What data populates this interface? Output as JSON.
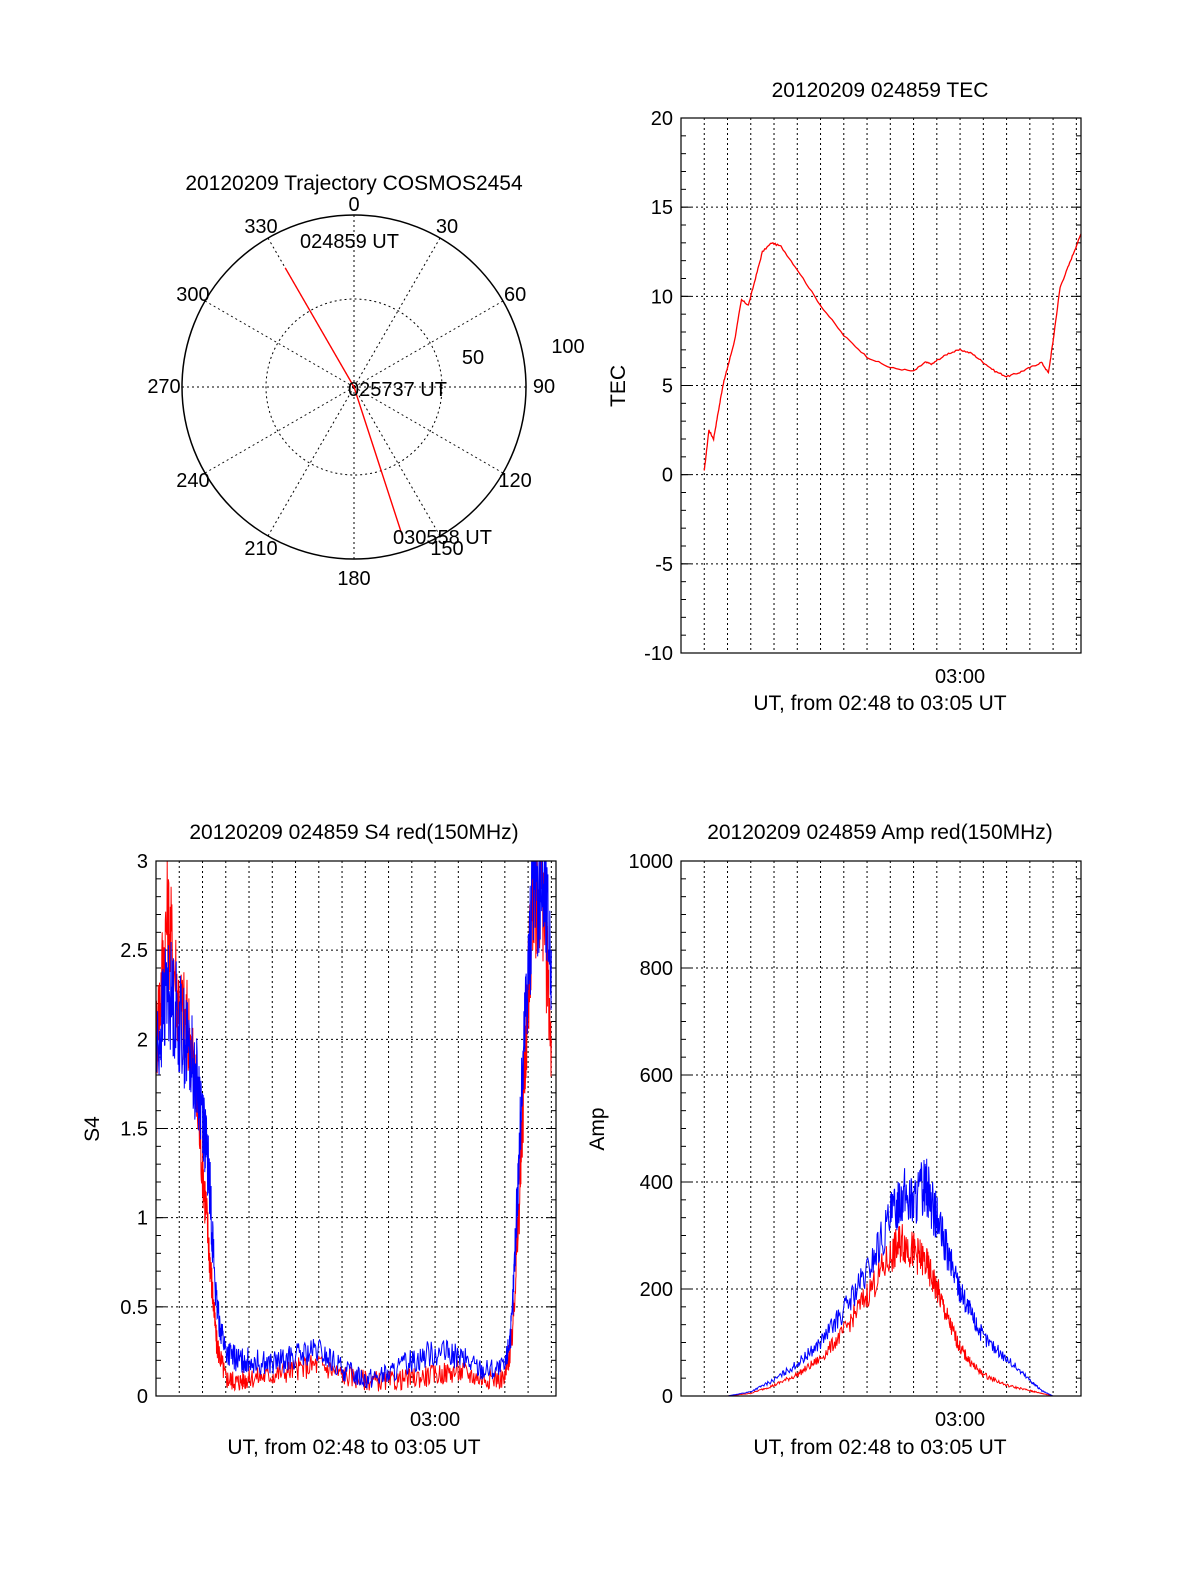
{
  "polar": {
    "title": "20120209 Trajectory COSMOS2454",
    "azimuth_labels": [
      "0",
      "30",
      "60",
      "90",
      "120",
      "150",
      "180",
      "210",
      "240",
      "270",
      "300",
      "330"
    ],
    "azimuths": [
      0,
      30,
      60,
      90,
      120,
      150,
      180,
      210,
      240,
      270,
      300,
      330
    ],
    "radial_labels": [
      "50",
      "100"
    ],
    "start_label": "024859 UT",
    "mid_label": "025737 UT",
    "end_label": "030558 UT",
    "track": [
      {
        "az": 330,
        "el_off": 80
      },
      {
        "az": 0,
        "el_off": 0
      },
      {
        "az": 162,
        "el_off": 92
      }
    ],
    "track_color": "#ff0000"
  },
  "chart_data": [
    {
      "type": "line",
      "title": "20120209 024859 TEC",
      "xlabel": "UT, from 02:48 to 03:05 UT",
      "ylabel": "TEC",
      "xlim": [
        0,
        17.2
      ],
      "ylim": [
        -10,
        20
      ],
      "yticks": [
        "-10",
        "-5",
        "0",
        "5",
        "10",
        "15",
        "20"
      ],
      "ytick_values": [
        -10,
        -5,
        0,
        5,
        10,
        15,
        20
      ],
      "xtick_label": "03:00",
      "xtick_value": 12.0,
      "series": [
        {
          "color": "#ff0000",
          "x": [
            1.0,
            1.2,
            1.4,
            1.6,
            1.8,
            2.0,
            2.3,
            2.6,
            2.9,
            3.2,
            3.5,
            3.9,
            4.3,
            5.0,
            6.0,
            7.0,
            8.0,
            9.0,
            10.0,
            10.5,
            10.8,
            11.0,
            11.5,
            12.0,
            12.5,
            13.0,
            13.5,
            14.0,
            14.5,
            15.0,
            15.5,
            15.8,
            16.0,
            16.3,
            16.6,
            16.9,
            17.2
          ],
          "y": [
            0.2,
            2.5,
            2.0,
            3.5,
            5.0,
            6.0,
            7.5,
            9.8,
            9.5,
            11.0,
            12.5,
            13.0,
            12.8,
            11.5,
            9.5,
            7.8,
            6.6,
            6.0,
            5.8,
            6.3,
            6.2,
            6.4,
            6.8,
            7.0,
            6.8,
            6.3,
            5.8,
            5.5,
            5.7,
            6.0,
            6.3,
            5.7,
            7.5,
            10.5,
            11.5,
            12.5,
            13.5
          ]
        }
      ]
    },
    {
      "type": "line",
      "title": "20120209 024859 S4 red(150MHz)",
      "xlabel": "UT, from 02:48 to 03:05 UT",
      "ylabel": "S4",
      "xlim": [
        0,
        17.2
      ],
      "ylim": [
        0,
        3
      ],
      "yticks": [
        "0",
        "0.5",
        "1",
        "1.5",
        "2",
        "2.5",
        "3"
      ],
      "ytick_values": [
        0,
        0.5,
        1,
        1.5,
        2,
        2.5,
        3
      ],
      "xtick_label": "03:00",
      "xtick_value": 12.0,
      "series": [
        {
          "color": "#ff0000",
          "x": [
            0.0,
            0.5,
            1.0,
            1.5,
            2.0,
            2.3,
            2.6,
            3.0,
            3.5,
            4.0,
            5.0,
            6.0,
            7.0,
            8.0,
            9.0,
            10.0,
            11.0,
            12.0,
            13.0,
            14.0,
            15.0,
            15.3,
            15.6,
            15.9,
            16.2,
            16.6,
            17.0
          ],
          "y": [
            2.0,
            2.7,
            2.2,
            2.0,
            1.3,
            0.8,
            0.3,
            0.1,
            0.08,
            0.1,
            0.12,
            0.15,
            0.18,
            0.12,
            0.09,
            0.08,
            0.1,
            0.12,
            0.14,
            0.1,
            0.1,
            0.3,
            1.0,
            2.0,
            2.8,
            2.9,
            2.0
          ]
        },
        {
          "color": "#0000ff",
          "x": [
            0.0,
            0.5,
            1.0,
            1.5,
            2.0,
            2.3,
            2.6,
            3.0,
            3.5,
            4.0,
            5.0,
            6.0,
            7.0,
            8.0,
            9.0,
            10.0,
            11.0,
            12.0,
            13.0,
            14.0,
            15.0,
            15.3,
            15.6,
            15.9,
            16.2,
            16.6,
            17.0
          ],
          "y": [
            1.9,
            2.3,
            2.1,
            1.9,
            1.6,
            1.2,
            0.5,
            0.25,
            0.2,
            0.2,
            0.18,
            0.22,
            0.25,
            0.15,
            0.1,
            0.12,
            0.2,
            0.25,
            0.22,
            0.15,
            0.15,
            0.4,
            1.3,
            2.2,
            2.8,
            2.9,
            2.5
          ]
        }
      ]
    },
    {
      "type": "line",
      "title": "20120209 024859 Amp red(150MHz)",
      "xlabel": "UT, from 02:48 to 03:05 UT",
      "ylabel": "Amp",
      "xlim": [
        0,
        17.2
      ],
      "ylim": [
        0,
        1000
      ],
      "yticks": [
        "0",
        "200",
        "400",
        "600",
        "800",
        "1000"
      ],
      "ytick_values": [
        0,
        200,
        400,
        600,
        800,
        1000
      ],
      "xtick_label": "03:00",
      "xtick_value": 12.0,
      "series": [
        {
          "color": "#ff0000",
          "x": [
            0.0,
            2.0,
            3.0,
            4.0,
            5.0,
            6.0,
            7.0,
            8.0,
            9.0,
            9.5,
            10.0,
            10.5,
            11.0,
            11.5,
            12.0,
            12.5,
            13.0,
            14.0,
            15.0,
            15.5,
            16.0,
            17.2
          ],
          "y": [
            0,
            0,
            5,
            20,
            40,
            70,
            120,
            190,
            260,
            290,
            270,
            250,
            200,
            140,
            90,
            60,
            40,
            20,
            10,
            5,
            0,
            0
          ]
        },
        {
          "color": "#0000ff",
          "x": [
            0.0,
            2.0,
            3.0,
            4.0,
            5.0,
            6.0,
            7.0,
            8.0,
            9.0,
            9.5,
            10.0,
            10.5,
            11.0,
            11.5,
            12.0,
            12.5,
            13.0,
            14.0,
            15.0,
            15.5,
            16.0,
            17.2
          ],
          "y": [
            0,
            0,
            8,
            30,
            60,
            100,
            160,
            230,
            330,
            380,
            360,
            400,
            330,
            260,
            200,
            150,
            110,
            70,
            30,
            10,
            0,
            0
          ]
        }
      ]
    }
  ]
}
